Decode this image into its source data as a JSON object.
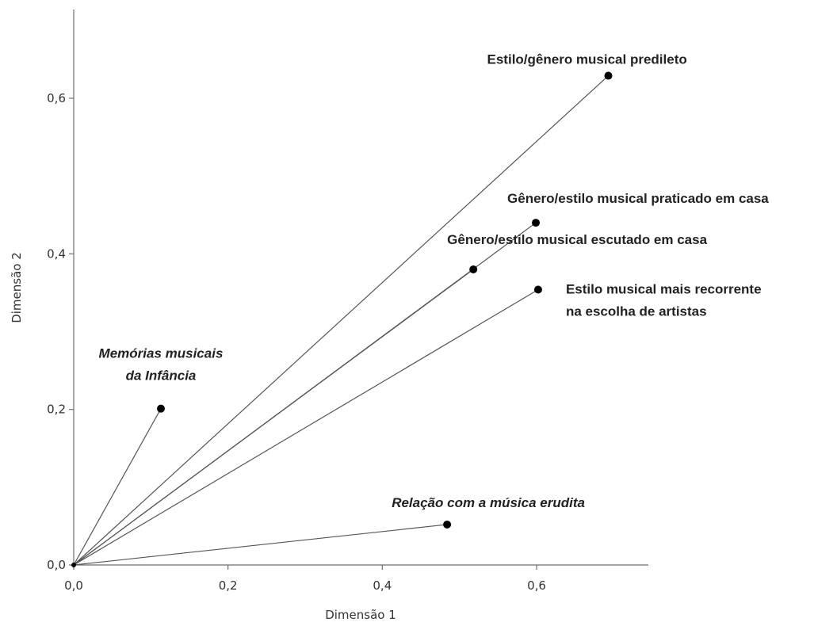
{
  "chart_data": {
    "type": "scatter",
    "xlabel": "Dimensão 1",
    "ylabel": "Dimensão 2",
    "xlim": [
      0,
      0.74
    ],
    "ylim": [
      0,
      0.72
    ],
    "xticks": [
      "0,0",
      "0,2",
      "0,4",
      "0,6"
    ],
    "yticks": [
      "0,0",
      "0,2",
      "0,4",
      "0,6"
    ],
    "xtick_values": [
      0,
      0.2,
      0.4,
      0.6
    ],
    "ytick_values": [
      0,
      0.2,
      0.4,
      0.6
    ],
    "grid": false,
    "vectors_from_origin": true,
    "points": [
      {
        "x": 0.693,
        "y": 0.629,
        "label": [
          "Estilo/gênero musical predileto"
        ],
        "italic": false
      },
      {
        "x": 0.599,
        "y": 0.44,
        "label": [
          "Gênero/estilo musical praticado em casa"
        ],
        "italic": false
      },
      {
        "x": 0.518,
        "y": 0.38,
        "label": [
          "Gênero/estilo musical escutado em casa"
        ],
        "italic": false
      },
      {
        "x": 0.602,
        "y": 0.354,
        "label": [
          "Estilo musical mais recorrente",
          "na escolha de artistas"
        ],
        "italic": false
      },
      {
        "x": 0.113,
        "y": 0.201,
        "label": [
          "Memórias musicais",
          "da Infância"
        ],
        "italic": true
      },
      {
        "x": 0.484,
        "y": 0.052,
        "label": [
          "Relação com a música erudita"
        ],
        "italic": true
      }
    ]
  }
}
